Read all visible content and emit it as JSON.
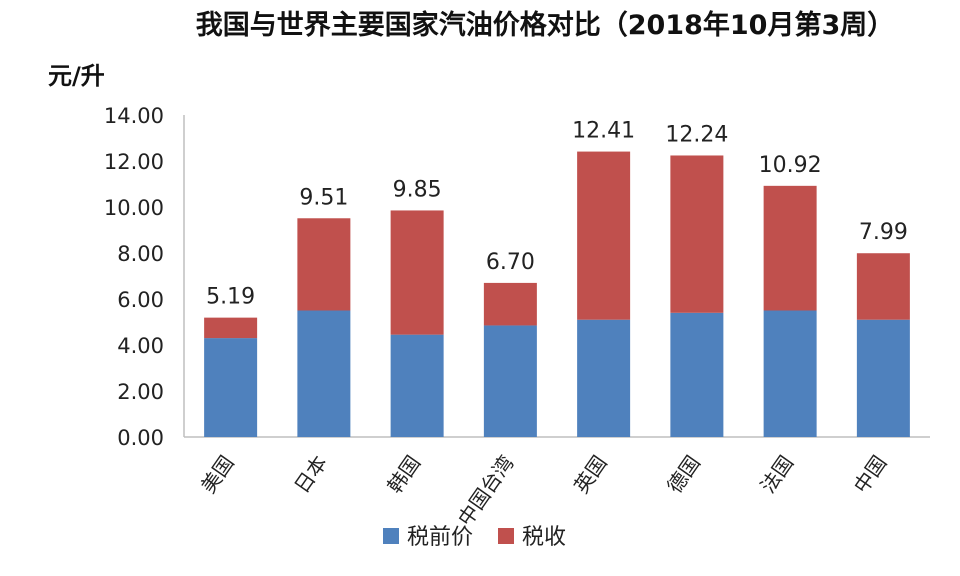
{
  "chart_data": {
    "type": "bar",
    "stacked": true,
    "title": "我国与世界主要国家汽油价格对比（2018年10月第3周）",
    "ylabel": "元/升",
    "xlabel": "",
    "ylim": [
      0,
      14
    ],
    "yticks": [
      "0.00",
      "2.00",
      "4.00",
      "6.00",
      "8.00",
      "10.00",
      "12.00",
      "14.00"
    ],
    "categories": [
      "美国",
      "日本",
      "韩国",
      "中国台湾",
      "英国",
      "德国",
      "法国",
      "中国"
    ],
    "series": [
      {
        "name": "税前价",
        "color": "#4f81bd",
        "values": [
          4.3,
          5.5,
          4.45,
          4.85,
          5.1,
          5.4,
          5.5,
          5.1
        ]
      },
      {
        "name": "税收",
        "color": "#c0504d",
        "values": [
          0.89,
          4.01,
          5.4,
          1.85,
          7.31,
          6.84,
          5.42,
          2.89
        ]
      }
    ],
    "totals": [
      "5.19",
      "9.51",
      "9.85",
      "6.70",
      "12.41",
      "12.24",
      "10.92",
      "7.99"
    ],
    "legend_position": "bottom",
    "grid": false
  }
}
